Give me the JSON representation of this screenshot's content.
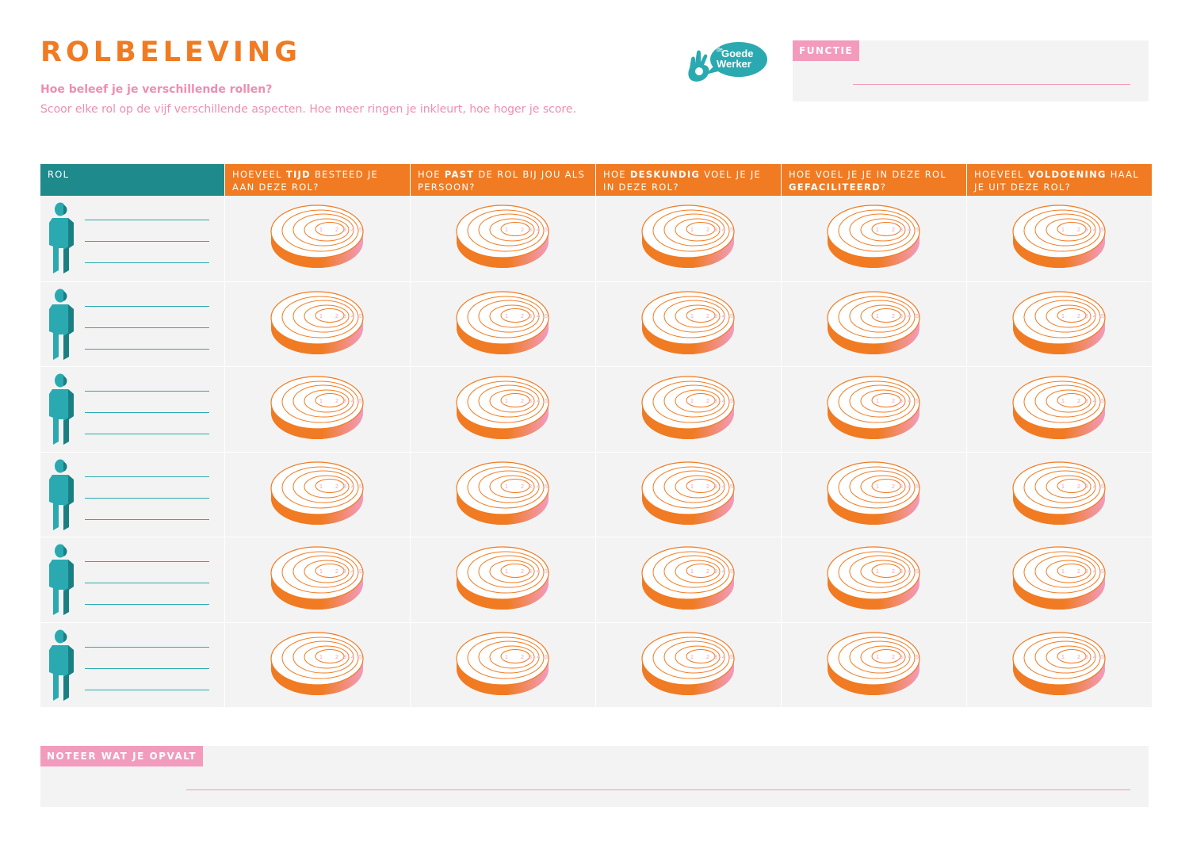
{
  "header": {
    "title": "ROLBELEVING",
    "subtitle": "Hoe beleef je je verschillende rollen?",
    "intro": "Scoor elke rol op de vijf verschillende aspecten. Hoe meer ringen je inkleurt, hoe hoger je score."
  },
  "logo": {
    "line1": "de",
    "line2": "Goede",
    "line3": "Werker",
    "icon": "ok-hand-icon"
  },
  "functie": {
    "label": "FUNCTIE"
  },
  "table": {
    "rol_header": "ROL",
    "questions": [
      {
        "pre": "HOEVEEL ",
        "bold": "TIJD",
        "post": " BESTEED JE AAN DEZE ROL?"
      },
      {
        "pre": "HOE ",
        "bold": "PAST",
        "post": " DE ROL BIJ JOU ALS PERSOON?"
      },
      {
        "pre": "HOE ",
        "bold": "DESKUNDIG",
        "post": " VOEL JE JE IN DEZE ROL?"
      },
      {
        "pre": "HOE VOEL JE JE IN DEZE ROL ",
        "bold": "GEFACILITEERD",
        "post": "?"
      },
      {
        "pre": "HOEVEEL ",
        "bold": "VOLDOENING",
        "post": " HAAL JE UIT DEZE ROL?"
      }
    ],
    "row_count": 6,
    "ring_labels": [
      "1",
      "2",
      "3",
      "4",
      "5"
    ]
  },
  "notes": {
    "label": "NOTEER WAT JE OPVALT"
  },
  "colors": {
    "orange": "#f07b22",
    "pink": "#f29bbd",
    "teal": "#1f8a8c",
    "teal_light": "#2aaab0",
    "panel": "#f3f3f3"
  }
}
